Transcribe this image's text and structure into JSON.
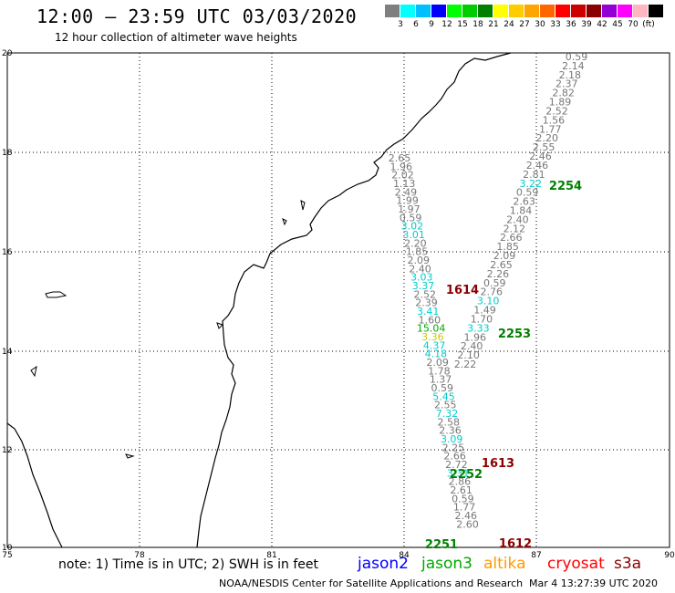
{
  "title": "12:00 – 23:59 UTC 03/03/2020",
  "subtitle": "12 hour collection of altimeter wave heights",
  "color_scale": {
    "colors": [
      "#7f7f7f",
      "#00ffff",
      "#00bfff",
      "#0000ff",
      "#00ff00",
      "#00cc00",
      "#008000",
      "#ffff00",
      "#ffcc00",
      "#ffa500",
      "#ff6600",
      "#ff0000",
      "#cc0000",
      "#8b0000",
      "#9400d3",
      "#ff00ff",
      "#ffb6c1",
      "#000000"
    ],
    "labels": [
      "3",
      "6",
      "9",
      "12",
      "15",
      "18",
      "21",
      "24",
      "27",
      "30",
      "33",
      "36",
      "39",
      "42",
      "45",
      "70",
      "(ft)"
    ]
  },
  "axes": {
    "x_ticks": [
      "75",
      "78",
      "81",
      "84",
      "87",
      "90"
    ],
    "y_ticks": [
      "20",
      "18",
      "16",
      "14",
      "12",
      "10"
    ]
  },
  "wave_heights": [
    {
      "v": "0.59",
      "c": "#777777"
    },
    {
      "v": "2.14",
      "c": "#777777"
    },
    {
      "v": "2.18",
      "c": "#777777"
    },
    {
      "v": "2.37",
      "c": "#777777"
    },
    {
      "v": "2.82",
      "c": "#777777"
    },
    {
      "v": "1.89",
      "c": "#777777"
    },
    {
      "v": "2.52",
      "c": "#777777"
    },
    {
      "v": "1.56",
      "c": "#777777"
    },
    {
      "v": "1.77",
      "c": "#777777"
    },
    {
      "v": "2.20",
      "c": "#777777"
    },
    {
      "v": "2.55",
      "c": "#777777"
    },
    {
      "v": "2.46",
      "c": "#777777"
    },
    {
      "v": "2.46",
      "c": "#777777"
    },
    {
      "v": "2.81",
      "c": "#777777"
    },
    {
      "v": "3.22",
      "c": "#00cccc"
    },
    {
      "v": "0.59",
      "c": "#777777"
    },
    {
      "v": "2.63",
      "c": "#777777"
    },
    {
      "v": "1.84",
      "c": "#777777"
    },
    {
      "v": "2.40",
      "c": "#777777"
    },
    {
      "v": "2.12",
      "c": "#777777"
    },
    {
      "v": "2.66",
      "c": "#777777"
    },
    {
      "v": "1.85",
      "c": "#777777"
    },
    {
      "v": "2.09",
      "c": "#777777"
    },
    {
      "v": "2.65",
      "c": "#777777"
    },
    {
      "v": "2.26",
      "c": "#777777"
    },
    {
      "v": "0.59",
      "c": "#777777"
    },
    {
      "v": "2.76",
      "c": "#777777"
    },
    {
      "v": "3.10",
      "c": "#00cccc"
    },
    {
      "v": "1.49",
      "c": "#777777"
    },
    {
      "v": "1.70",
      "c": "#777777"
    },
    {
      "v": "3.33",
      "c": "#00cccc"
    },
    {
      "v": "1.96",
      "c": "#777777"
    },
    {
      "v": "2.40",
      "c": "#777777"
    },
    {
      "v": "2.10",
      "c": "#777777"
    },
    {
      "v": "2.22",
      "c": "#777777"
    },
    {
      "v": "2.65",
      "c": "#777777"
    },
    {
      "v": "1.96",
      "c": "#777777"
    },
    {
      "v": "2.02",
      "c": "#777777"
    },
    {
      "v": "1.13",
      "c": "#777777"
    },
    {
      "v": "2.49",
      "c": "#777777"
    },
    {
      "v": "1.99",
      "c": "#777777"
    },
    {
      "v": "1.97",
      "c": "#777777"
    },
    {
      "v": "0.59",
      "c": "#777777"
    },
    {
      "v": "3.02",
      "c": "#00cccc"
    },
    {
      "v": "3.01",
      "c": "#00cccc"
    },
    {
      "v": "2.20",
      "c": "#777777"
    },
    {
      "v": "1.85",
      "c": "#777777"
    },
    {
      "v": "2.09",
      "c": "#777777"
    },
    {
      "v": "2.40",
      "c": "#777777"
    },
    {
      "v": "3.03",
      "c": "#00cccc"
    },
    {
      "v": "3.37",
      "c": "#00cccc"
    },
    {
      "v": "2.52",
      "c": "#777777"
    },
    {
      "v": "2.39",
      "c": "#777777"
    },
    {
      "v": "3.41",
      "c": "#00cccc"
    },
    {
      "v": "1.60",
      "c": "#777777"
    },
    {
      "v": "15.04",
      "c": "#00aa00"
    },
    {
      "v": "3.36",
      "c": "#cccc00"
    },
    {
      "v": "4.37",
      "c": "#00cccc"
    },
    {
      "v": "4.18",
      "c": "#00cccc"
    },
    {
      "v": "2.09",
      "c": "#777777"
    },
    {
      "v": "1.78",
      "c": "#777777"
    },
    {
      "v": "1.37",
      "c": "#777777"
    },
    {
      "v": "0.59",
      "c": "#777777"
    },
    {
      "v": "5.45",
      "c": "#00cccc"
    },
    {
      "v": "2.55",
      "c": "#777777"
    },
    {
      "v": "7.32",
      "c": "#00cccc"
    },
    {
      "v": "2.58",
      "c": "#777777"
    },
    {
      "v": "2.36",
      "c": "#777777"
    },
    {
      "v": "3.09",
      "c": "#00cccc"
    },
    {
      "v": "2.25",
      "c": "#777777"
    },
    {
      "v": "2.66",
      "c": "#777777"
    },
    {
      "v": "2.72",
      "c": "#777777"
    },
    {
      "v": "3.31",
      "c": "#00cccc"
    },
    {
      "v": "2.86",
      "c": "#777777"
    },
    {
      "v": "2.61",
      "c": "#777777"
    },
    {
      "v": "0.59",
      "c": "#777777"
    },
    {
      "v": "1.77",
      "c": "#777777"
    },
    {
      "v": "2.46",
      "c": "#777777"
    },
    {
      "v": "2.60",
      "c": "#777777"
    }
  ],
  "track_labels": [
    {
      "v": "2254",
      "c": "#008000"
    },
    {
      "v": "1614",
      "c": "#8b0000"
    },
    {
      "v": "2253",
      "c": "#008000"
    },
    {
      "v": "1613",
      "c": "#8b0000"
    },
    {
      "v": "2252",
      "c": "#008000"
    },
    {
      "v": "2251",
      "c": "#008000"
    },
    {
      "v": "1612",
      "c": "#8b0000"
    }
  ],
  "note": "note:  1) Time is in UTC;  2) SWH is in feet",
  "satellites": [
    {
      "name": "jason2",
      "color": "#0000ff"
    },
    {
      "name": "jason3",
      "color": "#00aa00"
    },
    {
      "name": "altika",
      "color": "#ff9900"
    },
    {
      "name": "cryosat",
      "color": "#ff0000"
    },
    {
      "name": "s3a",
      "color": "#8b0000"
    }
  ],
  "footer": {
    "credit": "NOAA/NESDIS Center for Satellite Applications and Research",
    "timestamp": "Mar  4 13:27:39 UTC 2020"
  }
}
